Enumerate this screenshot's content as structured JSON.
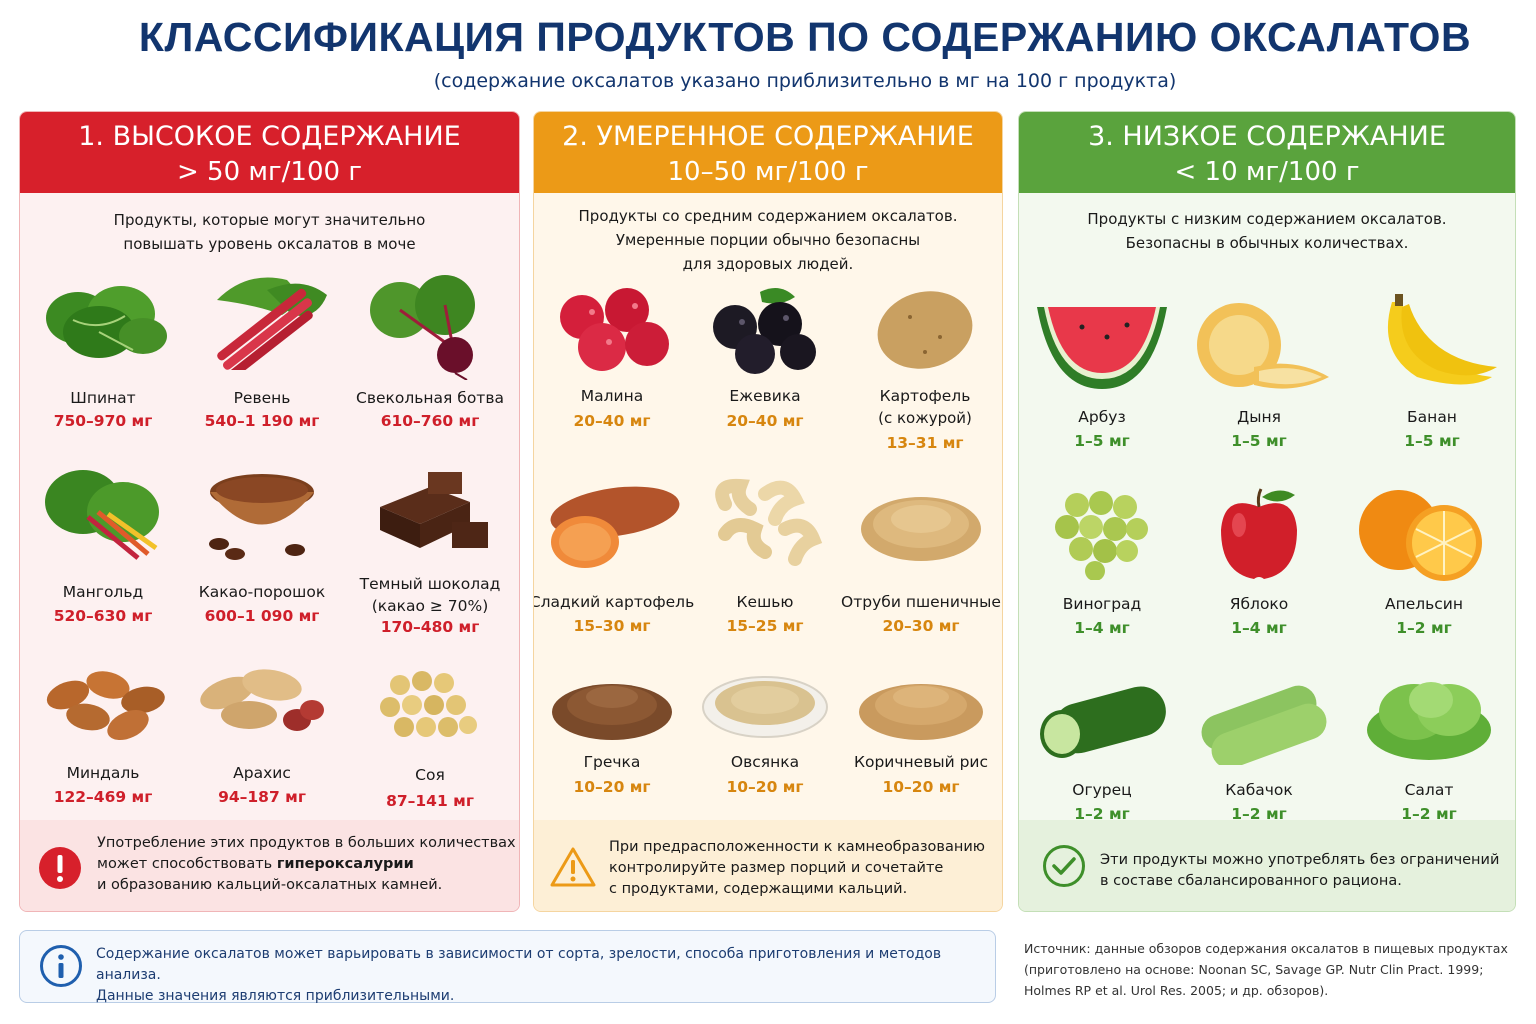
{
  "header": {
    "title": "КЛАССИФИКАЦИЯ ПРОДУКТОВ ПО СОДЕРЖАНИЮ ОКСАЛАТОВ",
    "subtitle": "(содержание оксалатов указано приблизительно в мг на 100 г продукта)"
  },
  "colors": {
    "high": "#d7202b",
    "moderate": "#ec9a17",
    "low": "#5aa33d",
    "title": "#12356e"
  },
  "categories": [
    {
      "heading": "1. ВЫСОКОЕ СОДЕРЖАНИЕ",
      "range": "> 50 мг/100 г",
      "description": [
        "Продукты, которые могут значительно",
        "повышать уровень оксалатов в моче"
      ],
      "items": [
        {
          "name": "Шпинат",
          "value": "750–970 мг",
          "icon": "spinach-icon"
        },
        {
          "name": "Ревень",
          "value": "540–1 190 мг",
          "icon": "rhubarb-icon"
        },
        {
          "name": "Свекольная ботва",
          "value": "610–760 мг",
          "icon": "beet-greens-icon"
        },
        {
          "name": "Мангольд",
          "value": "520–630 мг",
          "icon": "chard-icon"
        },
        {
          "name": "Какао-порошок",
          "value": "600–1 090 мг",
          "icon": "cocoa-powder-icon"
        },
        {
          "name": "Темный шоколад",
          "name2": "(какао ≥ 70%)",
          "value": "170–480 мг",
          "icon": "dark-chocolate-icon"
        },
        {
          "name": "Миндаль",
          "value": "122–469 мг",
          "icon": "almond-icon"
        },
        {
          "name": "Арахис",
          "value": "94–187 мг",
          "icon": "peanut-icon"
        },
        {
          "name": "Соя",
          "value": "87–141 мг",
          "icon": "soy-icon"
        }
      ],
      "note": {
        "icon": "exclamation-icon",
        "line1": "Употребление этих продуктов в больших количествах",
        "line2a": "может способствовать ",
        "line2b": "гипероксалурии",
        "line3": "и образованию кальций-оксалатных камней."
      }
    },
    {
      "heading": "2. УМЕРЕННОЕ СОДЕРЖАНИЕ",
      "range": "10–50 мг/100 г",
      "description": [
        "Продукты со средним содержанием оксалатов.",
        "Умеренные порции обычно безопасны",
        "для здоровых людей."
      ],
      "items": [
        {
          "name": "Малина",
          "value": "20–40 мг",
          "icon": "raspberry-icon"
        },
        {
          "name": "Ежевика",
          "value": "20–40 мг",
          "icon": "blackberry-icon"
        },
        {
          "name": "Картофель",
          "name2": "(с кожурой)",
          "value": "13–31 мг",
          "icon": "potato-icon"
        },
        {
          "name": "Сладкий картофель",
          "value": "15–30 мг",
          "icon": "sweet-potato-icon"
        },
        {
          "name": "Кешью",
          "value": "15–25 мг",
          "icon": "cashew-icon"
        },
        {
          "name": "Отруби пшеничные",
          "value": "20–30 мг",
          "icon": "wheat-bran-icon"
        },
        {
          "name": "Гречка",
          "value": "10–20 мг",
          "icon": "buckwheat-icon"
        },
        {
          "name": "Овсянка",
          "value": "10–20 мг",
          "icon": "oatmeal-icon"
        },
        {
          "name": "Коричневый рис",
          "value": "10–20 мг",
          "icon": "brown-rice-icon"
        }
      ],
      "note": {
        "icon": "warning-icon",
        "line1": "При предрасположенности к камнеобразованию",
        "line2": "контролируйте размер порций и сочетайте",
        "line3": "с продуктами, содержащими кальций."
      }
    },
    {
      "heading": "3. НИЗКОЕ СОДЕРЖАНИЕ",
      "range": "< 10 мг/100 г",
      "description": [
        "Продукты с низким содержанием оксалатов.",
        "Безопасны в обычных количествах."
      ],
      "items": [
        {
          "name": "Арбуз",
          "value": "1–5 мг",
          "icon": "watermelon-icon"
        },
        {
          "name": "Дыня",
          "value": "1–5 мг",
          "icon": "melon-icon"
        },
        {
          "name": "Банан",
          "value": "1–5 мг",
          "icon": "banana-icon"
        },
        {
          "name": "Виноград",
          "value": "1–4 мг",
          "icon": "grapes-icon"
        },
        {
          "name": "Яблоко",
          "value": "1–4 мг",
          "icon": "apple-icon"
        },
        {
          "name": "Апельсин",
          "value": "1–2 мг",
          "icon": "orange-icon"
        },
        {
          "name": "Огурец",
          "value": "1–2 мг",
          "icon": "cucumber-icon"
        },
        {
          "name": "Кабачок",
          "value": "1–2 мг",
          "icon": "zucchini-icon"
        },
        {
          "name": "Салат",
          "value": "1–2 мг",
          "icon": "lettuce-icon"
        }
      ],
      "note": {
        "icon": "check-icon",
        "line1": "Эти продукты можно употреблять без ограничений",
        "line2": "в составе сбалансированного рациона."
      }
    }
  ],
  "info": {
    "icon": "info-icon",
    "line1": "Содержание оксалатов может варьировать в зависимости от сорта, зрелости, способа приготовления и методов анализа.",
    "line2": "Данные значения являются приблизительными."
  },
  "source": {
    "line1": "Источник: данные обзоров содержания оксалатов в пищевых продуктах",
    "line2": "(приготовлено на основе: Noonan SC, Savage GP. Nutr Clin Pract. 1999;",
    "line3": "Holmes RP et al. Urol Res. 2005; и др. обзоров)."
  }
}
